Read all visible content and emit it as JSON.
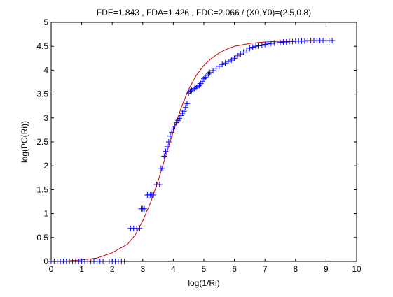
{
  "chart_data": {
    "type": "scatter",
    "title": "FDE=1.843 , FDA=1.426 , FDC=2.066 / (X0,Y0)=(2.5,0.8)",
    "xlabel": "log(1/Ri)",
    "ylabel": "log(PC(Ri))",
    "xlim": [
      0,
      10
    ],
    "ylim": [
      0,
      5
    ],
    "xticks": [
      0,
      1,
      2,
      3,
      4,
      5,
      6,
      7,
      8,
      9,
      10
    ],
    "yticks": [
      0,
      0.5,
      1,
      1.5,
      2,
      2.5,
      3,
      3.5,
      4,
      4.5,
      5
    ],
    "xtick_labels": [
      "0",
      "1",
      "2",
      "3",
      "4",
      "5",
      "6",
      "7",
      "8",
      "9",
      "10"
    ],
    "ytick_labels": [
      "0",
      "0.5",
      "1",
      "1.5",
      "2",
      "2.5",
      "3",
      "3.5",
      "4",
      "4.5",
      "5"
    ],
    "grid": false,
    "legend": "none",
    "series": [
      {
        "kind": "markers",
        "marker": "plus",
        "color": "#0000ff",
        "points": [
          [
            0.0,
            0.0
          ],
          [
            0.1,
            0.0
          ],
          [
            0.2,
            0.0
          ],
          [
            0.3,
            0.0
          ],
          [
            0.4,
            0.0
          ],
          [
            0.5,
            0.0
          ],
          [
            0.6,
            0.0
          ],
          [
            0.7,
            0.0
          ],
          [
            0.8,
            0.0
          ],
          [
            0.9,
            0.0
          ],
          [
            1.0,
            0.0
          ],
          [
            1.1,
            0.0
          ],
          [
            1.2,
            0.0
          ],
          [
            1.3,
            0.0
          ],
          [
            1.4,
            0.0
          ],
          [
            1.5,
            0.0
          ],
          [
            1.6,
            0.0
          ],
          [
            1.7,
            0.0
          ],
          [
            1.8,
            0.0
          ],
          [
            1.9,
            0.0
          ],
          [
            2.0,
            0.0
          ],
          [
            2.1,
            0.0
          ],
          [
            2.2,
            0.0
          ],
          [
            2.3,
            0.0
          ],
          [
            2.4,
            0.0
          ],
          [
            2.6,
            0.69
          ],
          [
            2.7,
            0.69
          ],
          [
            2.8,
            0.69
          ],
          [
            2.9,
            0.69
          ],
          [
            2.95,
            1.1
          ],
          [
            3.0,
            1.1
          ],
          [
            3.05,
            1.1
          ],
          [
            3.15,
            1.39
          ],
          [
            3.2,
            1.39
          ],
          [
            3.25,
            1.39
          ],
          [
            3.3,
            1.39
          ],
          [
            3.35,
            1.39
          ],
          [
            3.45,
            1.61
          ],
          [
            3.5,
            1.61
          ],
          [
            3.55,
            1.61
          ],
          [
            3.6,
            1.95
          ],
          [
            3.65,
            1.95
          ],
          [
            3.7,
            2.2
          ],
          [
            3.75,
            2.3
          ],
          [
            3.8,
            2.4
          ],
          [
            3.85,
            2.5
          ],
          [
            3.9,
            2.62
          ],
          [
            3.95,
            2.7
          ],
          [
            4.0,
            2.77
          ],
          [
            4.05,
            2.83
          ],
          [
            4.1,
            2.9
          ],
          [
            4.15,
            2.95
          ],
          [
            4.2,
            2.99
          ],
          [
            4.25,
            3.05
          ],
          [
            4.3,
            3.1
          ],
          [
            4.35,
            3.14
          ],
          [
            4.4,
            3.22
          ],
          [
            4.45,
            3.3
          ],
          [
            4.5,
            3.52
          ],
          [
            4.55,
            3.56
          ],
          [
            4.6,
            3.58
          ],
          [
            4.65,
            3.6
          ],
          [
            4.7,
            3.62
          ],
          [
            4.75,
            3.64
          ],
          [
            4.8,
            3.66
          ],
          [
            4.85,
            3.68
          ],
          [
            4.9,
            3.72
          ],
          [
            4.95,
            3.76
          ],
          [
            5.0,
            3.82
          ],
          [
            5.05,
            3.85
          ],
          [
            5.1,
            3.89
          ],
          [
            5.15,
            3.92
          ],
          [
            5.2,
            3.95
          ],
          [
            5.3,
            3.99
          ],
          [
            5.4,
            4.04
          ],
          [
            5.5,
            4.08
          ],
          [
            5.6,
            4.12
          ],
          [
            5.7,
            4.15
          ],
          [
            5.8,
            4.18
          ],
          [
            5.9,
            4.21
          ],
          [
            6.0,
            4.25
          ],
          [
            6.1,
            4.3
          ],
          [
            6.2,
            4.34
          ],
          [
            6.3,
            4.38
          ],
          [
            6.4,
            4.42
          ],
          [
            6.5,
            4.46
          ],
          [
            6.6,
            4.48
          ],
          [
            6.7,
            4.5
          ],
          [
            6.8,
            4.51
          ],
          [
            6.9,
            4.52
          ],
          [
            7.0,
            4.54
          ],
          [
            7.1,
            4.55
          ],
          [
            7.2,
            4.56
          ],
          [
            7.3,
            4.57
          ],
          [
            7.4,
            4.57
          ],
          [
            7.5,
            4.58
          ],
          [
            7.6,
            4.59
          ],
          [
            7.7,
            4.59
          ],
          [
            7.8,
            4.6
          ],
          [
            7.9,
            4.6
          ],
          [
            8.0,
            4.61
          ],
          [
            8.1,
            4.61
          ],
          [
            8.2,
            4.61
          ],
          [
            8.3,
            4.61
          ],
          [
            8.4,
            4.62
          ],
          [
            8.5,
            4.62
          ],
          [
            8.6,
            4.62
          ],
          [
            8.7,
            4.62
          ],
          [
            8.8,
            4.62
          ],
          [
            8.9,
            4.62
          ],
          [
            9.0,
            4.62
          ],
          [
            9.1,
            4.62
          ],
          [
            9.2,
            4.62
          ]
        ]
      },
      {
        "kind": "line",
        "color": "#cc0000",
        "points": [
          [
            0.0,
            0.004
          ],
          [
            0.5,
            0.008
          ],
          [
            1.0,
            0.03
          ],
          [
            1.5,
            0.07
          ],
          [
            2.0,
            0.18
          ],
          [
            2.5,
            0.36
          ],
          [
            2.75,
            0.55
          ],
          [
            3.0,
            0.85
          ],
          [
            3.25,
            1.22
          ],
          [
            3.5,
            1.68
          ],
          [
            3.75,
            2.2
          ],
          [
            4.0,
            2.72
          ],
          [
            4.25,
            3.2
          ],
          [
            4.5,
            3.6
          ],
          [
            4.75,
            3.89
          ],
          [
            5.0,
            4.1
          ],
          [
            5.25,
            4.25
          ],
          [
            5.5,
            4.36
          ],
          [
            5.75,
            4.44
          ],
          [
            6.0,
            4.5
          ],
          [
            6.5,
            4.56
          ],
          [
            7.0,
            4.59
          ],
          [
            7.5,
            4.605
          ],
          [
            8.0,
            4.61
          ],
          [
            8.5,
            4.615
          ],
          [
            9.0,
            4.62
          ],
          [
            9.2,
            4.62
          ]
        ]
      }
    ]
  }
}
